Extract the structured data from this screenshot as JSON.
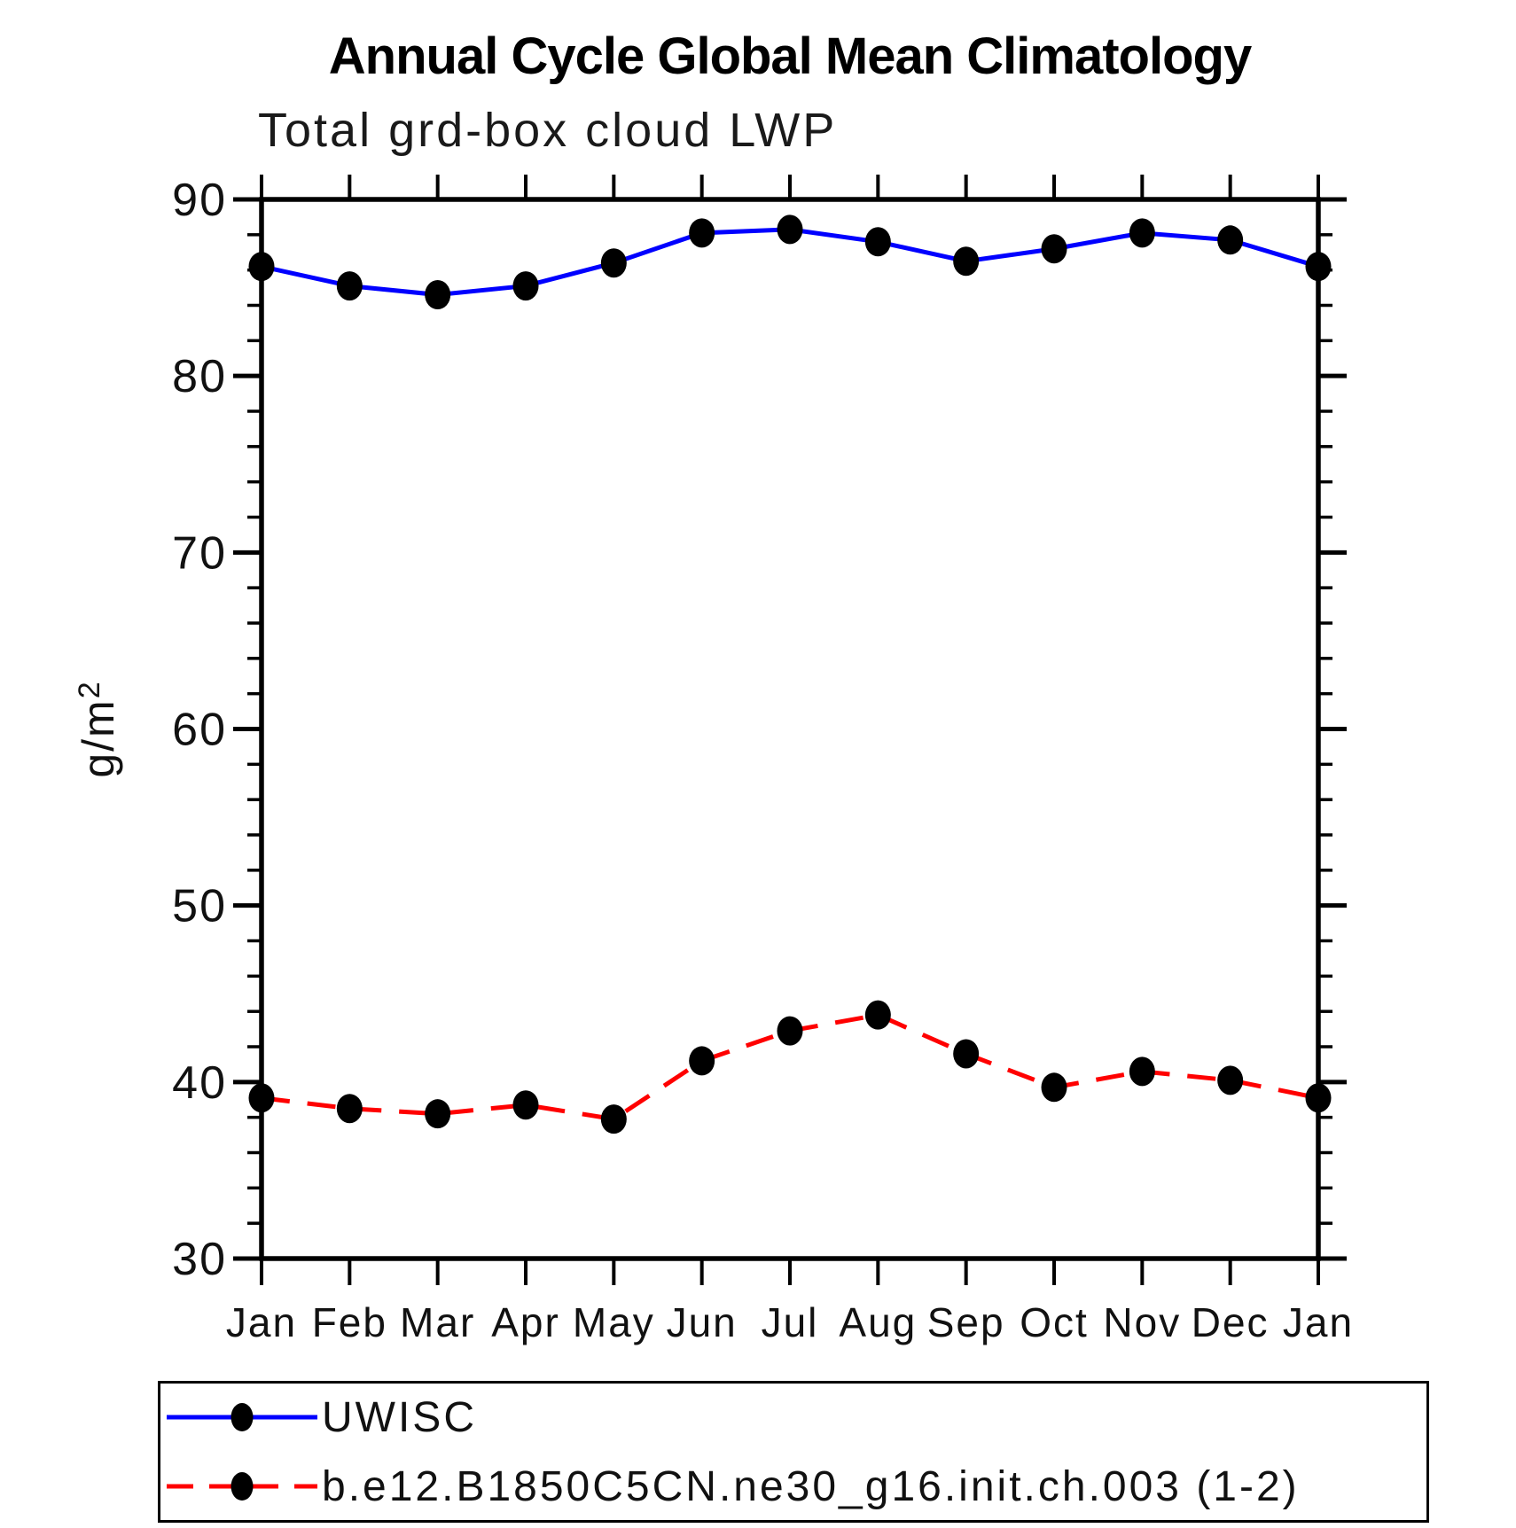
{
  "chart_data": {
    "type": "line",
    "title": "Annual Cycle Global Mean Climatology",
    "subtitle": "Total grd-box cloud LWP",
    "ylabel": "g/m²",
    "xlabel": "",
    "x_categories": [
      "Jan",
      "Feb",
      "Mar",
      "Apr",
      "May",
      "Jun",
      "Jul",
      "Aug",
      "Sep",
      "Oct",
      "Nov",
      "Dec",
      "Jan"
    ],
    "ylim": [
      30,
      90
    ],
    "y_major_ticks": [
      30,
      40,
      50,
      60,
      70,
      80,
      90
    ],
    "y_minor_step": 2,
    "grid": false,
    "legend_position": "bottom",
    "axis_color": "#000000",
    "marker_color": "#000000",
    "series": [
      {
        "name": "UWISC",
        "color": "#0000ff",
        "style": "solid",
        "marker": "filled-circle",
        "values": [
          86.2,
          85.1,
          84.6,
          85.1,
          86.4,
          88.1,
          88.3,
          87.6,
          86.5,
          87.2,
          88.1,
          87.7,
          86.2
        ]
      },
      {
        "name": "b.e12.B1850C5CN.ne30_g16.init.ch.003 (1-2)",
        "color": "#ff0000",
        "style": "dashed",
        "marker": "filled-circle",
        "values": [
          39.1,
          38.5,
          38.2,
          38.7,
          37.9,
          41.2,
          42.9,
          43.8,
          41.6,
          39.7,
          40.6,
          40.1,
          39.1
        ]
      }
    ]
  }
}
